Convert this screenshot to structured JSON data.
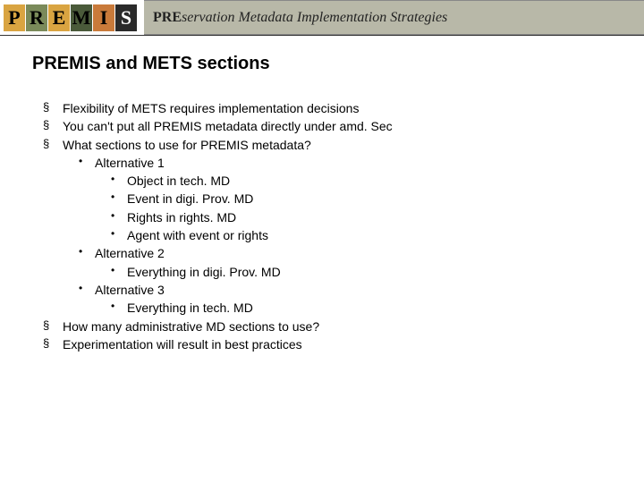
{
  "header": {
    "logo_letters": [
      "P",
      "R",
      "E",
      "M",
      "I",
      "S"
    ],
    "logo_colors": [
      "#d9a441",
      "#7a8a5a",
      "#d9a441",
      "#4a5a3a",
      "#c97a3a",
      "#2a2a2a"
    ],
    "tagline_bold": "PRE",
    "tagline_rest": "servation Metadata Implementation Strategies"
  },
  "title": "PREMIS and METS sections",
  "bullets": [
    {
      "text": "Flexibility of METS requires implementation decisions"
    },
    {
      "text": "You can't put all PREMIS metadata directly under amd. Sec"
    },
    {
      "text": "What sections to use for PREMIS metadata?",
      "children": [
        {
          "text": "Alternative 1",
          "children": [
            {
              "text": "Object in tech. MD"
            },
            {
              "text": "Event in digi. Prov. MD"
            },
            {
              "text": "Rights in rights. MD"
            },
            {
              "text": "Agent with event or rights"
            }
          ]
        },
        {
          "text": "Alternative 2",
          "children": [
            {
              "text": "Everything in digi. Prov. MD"
            }
          ]
        },
        {
          "text": "Alternative 3",
          "children": [
            {
              "text": "Everything in tech. MD"
            }
          ]
        }
      ]
    },
    {
      "text": "How many administrative MD sections to use?"
    },
    {
      "text": "Experimentation will result in best practices"
    }
  ]
}
